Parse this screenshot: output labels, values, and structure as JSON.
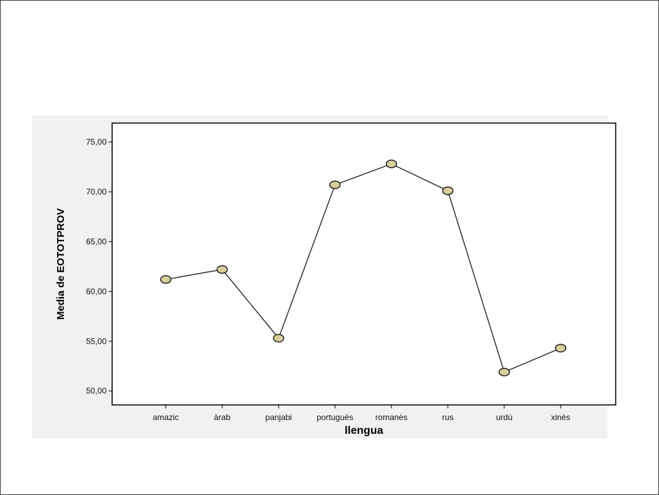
{
  "chart_data": {
    "type": "line",
    "xlabel": "llengua",
    "ylabel": "Media de EOTOTPROV",
    "categories": [
      "amazic",
      "àrab",
      "panjabi",
      "portuguès",
      "romanès",
      "rus",
      "urdú",
      "xinès"
    ],
    "series": [
      {
        "values": [
          61.2,
          62.2,
          55.3,
          70.7,
          72.8,
          70.1,
          51.9,
          54.3
        ]
      }
    ],
    "yticks": [
      "50,00",
      "55,00",
      "60,00",
      "65,00",
      "70,00",
      "75,00"
    ],
    "ytick_values": [
      50,
      55,
      60,
      65,
      70,
      75
    ],
    "ylim": [
      48.6,
      76.9
    ],
    "grid": false,
    "colors": {
      "line": "#1a1a1a",
      "marker_fill": "#d8d09c",
      "marker_stroke": "#222222",
      "plot_background": "#ffffff",
      "panel_background": "#f1f1f1"
    }
  }
}
